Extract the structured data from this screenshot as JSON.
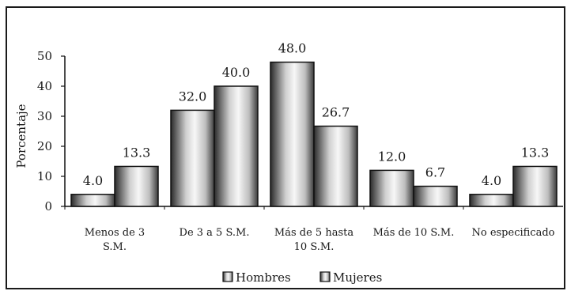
{
  "chart_data": {
    "type": "bar",
    "categories": [
      [
        "Menos de 3",
        "S.M."
      ],
      [
        "De 3 a 5 S.M."
      ],
      [
        "Más de 5 hasta",
        "10 S.M."
      ],
      [
        "Más de 10 S.M."
      ],
      [
        "No especificado"
      ]
    ],
    "series": [
      {
        "name": "Hombres",
        "values": [
          4.0,
          32.0,
          48.0,
          12.0,
          4.0
        ],
        "value_labels": [
          "4.0",
          "32.0",
          "48.0",
          "12.0",
          "4.0"
        ]
      },
      {
        "name": "Mujeres",
        "values": [
          13.3,
          40.0,
          26.7,
          6.7,
          13.3
        ],
        "value_labels": [
          "13.3",
          "40.0",
          "26.7",
          "6.7",
          "13.3"
        ]
      }
    ],
    "ylabel": "Porcentaje",
    "ylim": [
      0,
      50
    ],
    "yticks": [
      0,
      10,
      20,
      30,
      40,
      50
    ],
    "grid": false,
    "legend_position": "bottom",
    "colors": {
      "bar_light": "#f7f7f7",
      "bar_dark": "#2a2a2a",
      "outline": "#111111"
    }
  }
}
